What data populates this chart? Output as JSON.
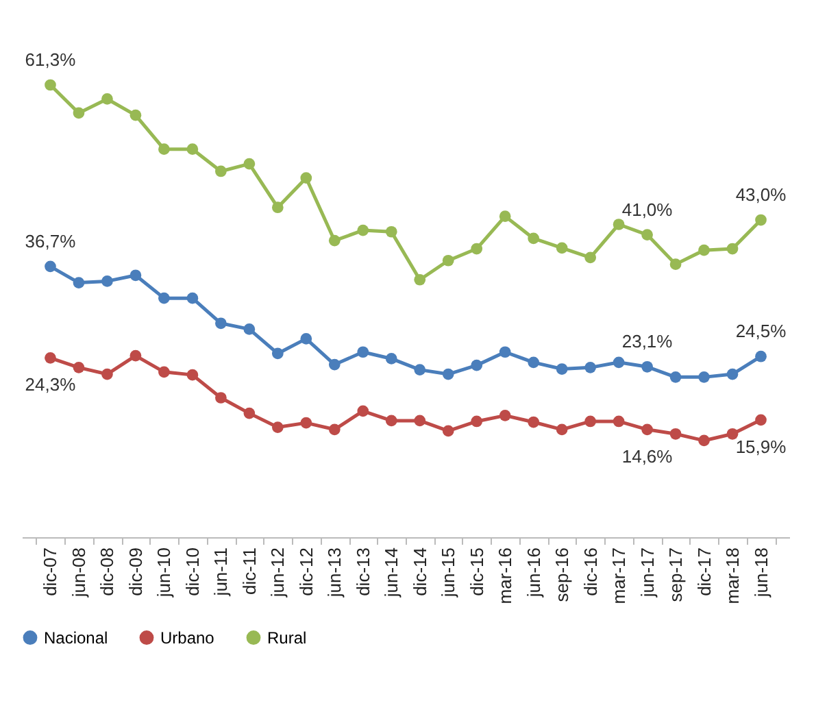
{
  "chart_data": {
    "type": "line",
    "categories": [
      "dic-07",
      "jun-08",
      "dic-08",
      "dic-09",
      "jun-10",
      "dic-10",
      "jun-11",
      "dic-11",
      "jun-12",
      "dic-12",
      "jun-13",
      "dic-13",
      "jun-14",
      "dic-14",
      "jun-15",
      "dic-15",
      "mar-16",
      "jun-16",
      "sep-16",
      "dic-16",
      "mar-17",
      "jun-17",
      "sep-17",
      "dic-17",
      "mar-18",
      "jun-18"
    ],
    "series": [
      {
        "name": "Nacional",
        "color": "#4a7ebb",
        "values": [
          36.7,
          34.5,
          34.7,
          35.5,
          32.4,
          32.4,
          29.0,
          28.2,
          24.9,
          26.9,
          23.4,
          25.1,
          24.2,
          22.7,
          22.1,
          23.3,
          25.1,
          23.7,
          22.8,
          23.0,
          23.7,
          23.1,
          21.7,
          21.7,
          22.1,
          24.5
        ],
        "value_labels": [
          "36,7%",
          null,
          null,
          null,
          null,
          null,
          null,
          null,
          null,
          null,
          null,
          null,
          null,
          null,
          null,
          null,
          null,
          null,
          null,
          null,
          null,
          "23,1%",
          null,
          null,
          null,
          "24,5%"
        ]
      },
      {
        "name": "Urbano",
        "color": "#be4b48",
        "values": [
          24.3,
          23.0,
          22.1,
          24.6,
          22.4,
          22.0,
          18.9,
          16.8,
          14.9,
          15.5,
          14.6,
          17.1,
          15.8,
          15.8,
          14.4,
          15.7,
          16.5,
          15.6,
          14.6,
          15.7,
          15.7,
          14.6,
          14.0,
          13.1,
          14.0,
          15.9
        ],
        "value_labels": [
          "24,3%",
          null,
          null,
          null,
          null,
          null,
          null,
          null,
          null,
          null,
          null,
          null,
          null,
          null,
          null,
          null,
          null,
          null,
          null,
          null,
          null,
          "14,6%",
          null,
          null,
          null,
          "15,9%"
        ]
      },
      {
        "name": "Rural",
        "color": "#98b954",
        "values": [
          61.3,
          57.5,
          59.4,
          57.2,
          52.6,
          52.6,
          49.6,
          50.6,
          44.7,
          48.7,
          40.2,
          41.6,
          41.4,
          34.9,
          37.5,
          39.1,
          43.5,
          40.5,
          39.2,
          37.9,
          42.4,
          41.0,
          37.0,
          38.9,
          39.1,
          43.0
        ],
        "value_labels": [
          "61,3%",
          null,
          null,
          null,
          null,
          null,
          null,
          null,
          null,
          null,
          null,
          null,
          null,
          null,
          null,
          null,
          null,
          null,
          null,
          null,
          null,
          "41,0%",
          null,
          null,
          null,
          "43,0%"
        ]
      }
    ],
    "tick_labels": "x",
    "grid": false,
    "legend": "bottom",
    "marker": "circle",
    "line_style": "solid"
  }
}
